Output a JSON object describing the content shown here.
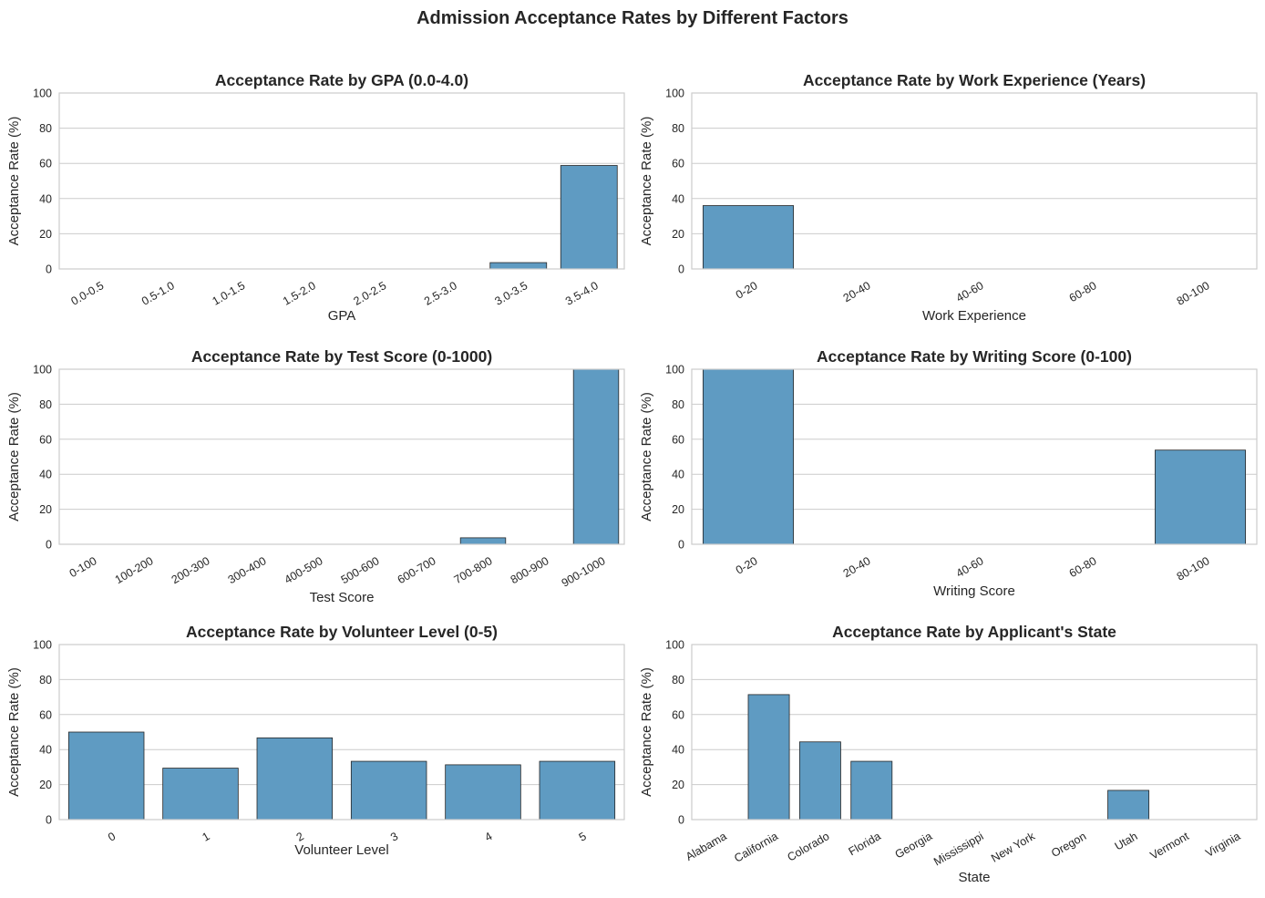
{
  "figure": {
    "title": "Admission Acceptance Rates by Different Factors",
    "bar_color": "#5f9bc2",
    "grid_color": "#cccccc",
    "text_color": "#262626"
  },
  "chart_data": [
    {
      "type": "bar",
      "title": "Acceptance Rate by GPA (0.0-4.0)",
      "xlabel": "GPA",
      "ylabel": "Acceptance Rate (%)",
      "ylim": [
        0,
        100
      ],
      "yticks": [
        0,
        20,
        40,
        60,
        80,
        100
      ],
      "grid": true,
      "categories": [
        "0.0-0.5",
        "0.5-1.0",
        "1.0-1.5",
        "1.5-2.0",
        "2.0-2.5",
        "2.5-3.0",
        "3.0-3.5",
        "3.5-4.0"
      ],
      "values": [
        0,
        0,
        0,
        0,
        0,
        0,
        3.6,
        58.8
      ]
    },
    {
      "type": "bar",
      "title": "Acceptance Rate by Work Experience (Years)",
      "xlabel": "Work Experience",
      "ylabel": "Acceptance Rate (%)",
      "ylim": [
        0,
        100
      ],
      "yticks": [
        0,
        20,
        40,
        60,
        80,
        100
      ],
      "grid": true,
      "categories": [
        "0-20",
        "20-40",
        "40-60",
        "60-80",
        "80-100"
      ],
      "values": [
        36,
        0,
        0,
        0,
        0
      ]
    },
    {
      "type": "bar",
      "title": "Acceptance Rate by Test Score (0-1000)",
      "xlabel": "Test Score",
      "ylabel": "Acceptance Rate (%)",
      "ylim": [
        0,
        100
      ],
      "yticks": [
        0,
        20,
        40,
        60,
        80,
        100
      ],
      "grid": true,
      "categories": [
        "0-100",
        "100-200",
        "200-300",
        "300-400",
        "400-500",
        "500-600",
        "600-700",
        "700-800",
        "800-900",
        "900-1000"
      ],
      "values": [
        0,
        0,
        0,
        0,
        0,
        0,
        0,
        3.7,
        0,
        100
      ]
    },
    {
      "type": "bar",
      "title": "Acceptance Rate by Writing Score (0-100)",
      "xlabel": "Writing Score",
      "ylabel": "Acceptance Rate (%)",
      "ylim": [
        0,
        100
      ],
      "yticks": [
        0,
        20,
        40,
        60,
        80,
        100
      ],
      "grid": true,
      "categories": [
        "0-20",
        "20-40",
        "40-60",
        "60-80",
        "80-100"
      ],
      "values": [
        100,
        0,
        0,
        0,
        53.8
      ]
    },
    {
      "type": "bar",
      "title": "Acceptance Rate by Volunteer Level (0-5)",
      "xlabel": "Volunteer Level",
      "ylabel": "Acceptance Rate (%)",
      "ylim": [
        0,
        100
      ],
      "yticks": [
        0,
        20,
        40,
        60,
        80,
        100
      ],
      "grid": true,
      "categories": [
        "0",
        "1",
        "2",
        "3",
        "4",
        "5"
      ],
      "values": [
        50,
        29.4,
        46.7,
        33.3,
        31.3,
        33.3
      ]
    },
    {
      "type": "bar",
      "title": "Acceptance Rate by Applicant's State",
      "xlabel": "State",
      "ylabel": "Acceptance Rate (%)",
      "ylim": [
        0,
        100
      ],
      "yticks": [
        0,
        20,
        40,
        60,
        80,
        100
      ],
      "grid": true,
      "categories": [
        "Alabama",
        "California",
        "Colorado",
        "Florida",
        "Georgia",
        "Mississippi",
        "New York",
        "Oregon",
        "Utah",
        "Vermont",
        "Virginia"
      ],
      "values": [
        0,
        71.4,
        44.4,
        33.3,
        0,
        0,
        0,
        0,
        16.7,
        0,
        0
      ]
    }
  ]
}
